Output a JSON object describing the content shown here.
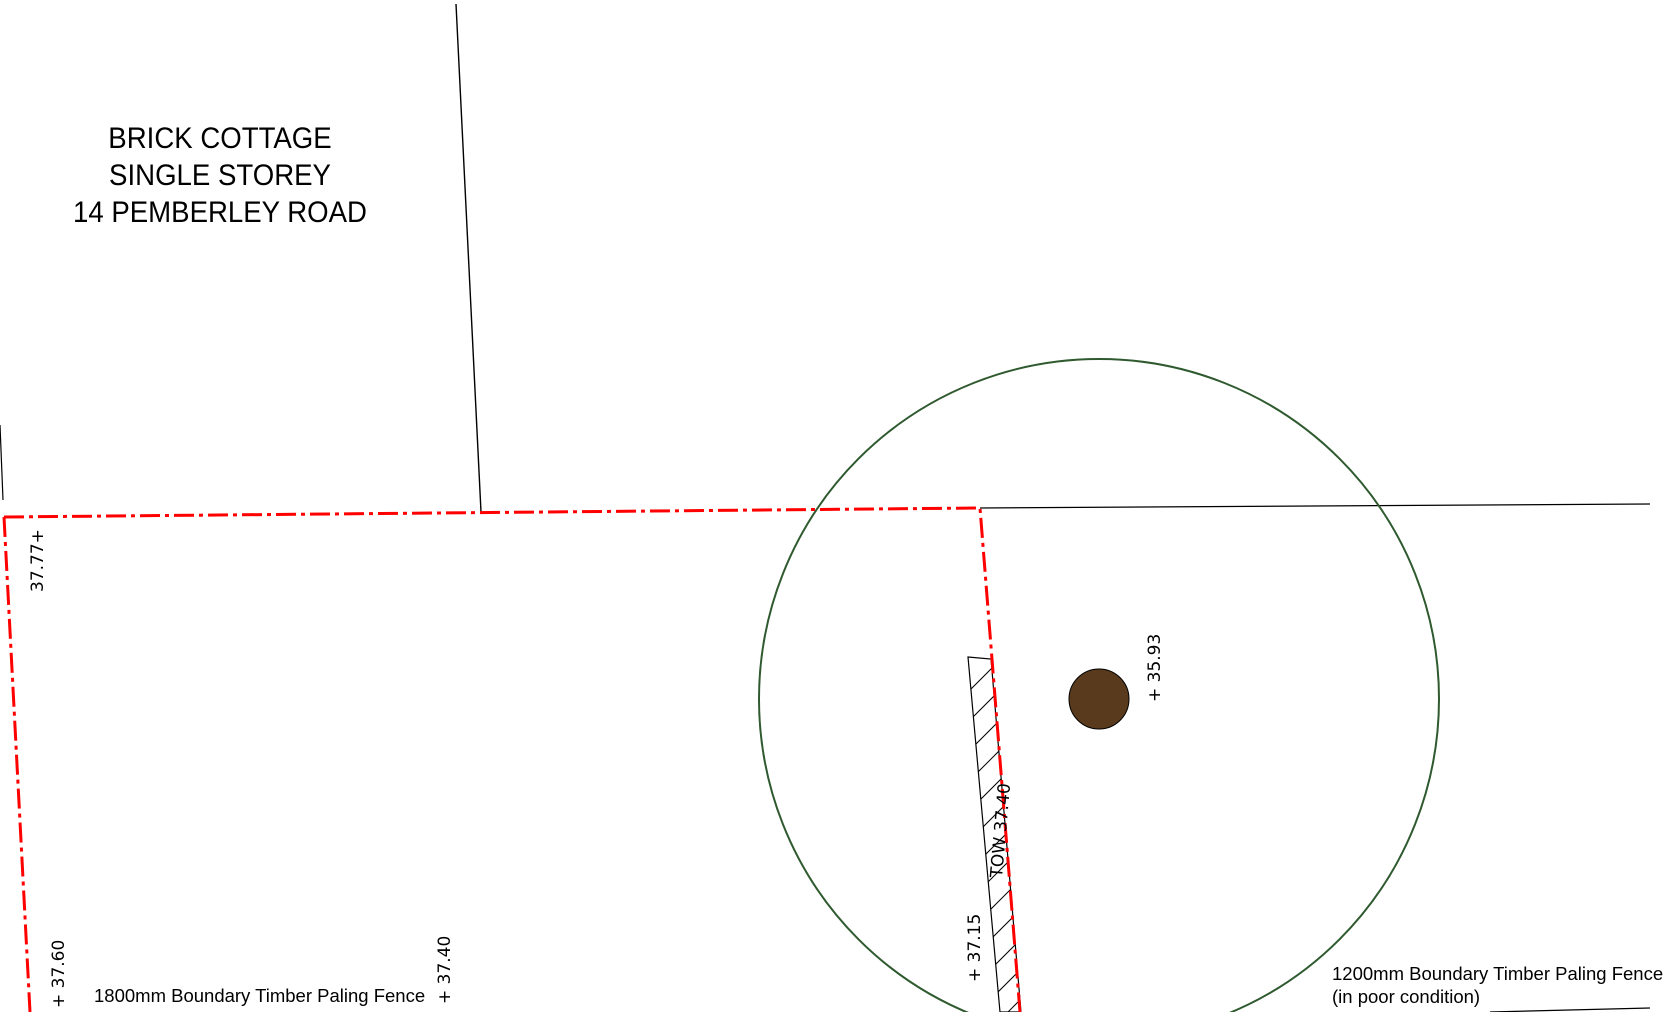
{
  "house": {
    "line1": "BRICK COTTAGE",
    "line2": "SINGLE STOREY",
    "line3": "14 PEMBERLEY ROAD"
  },
  "levels": {
    "top_left": "37.77+",
    "bottom_left": "+ 37.60",
    "bottom_mid": "+ 37.40",
    "tree": "+ 35.93",
    "wall_base": "+ 37.15",
    "wall_top": "TOW 37.40"
  },
  "fences": {
    "left_note": "1800mm Boundary Timber Paling Fence",
    "right_note_line1": "1200mm Boundary Timber Paling Fence",
    "right_note_line2": "(in poor condition)"
  },
  "colors": {
    "boundary": "#ff0000",
    "tree_zone": "#2f5a2f",
    "tree_trunk": "#5a3a1c",
    "linework": "#000000"
  }
}
